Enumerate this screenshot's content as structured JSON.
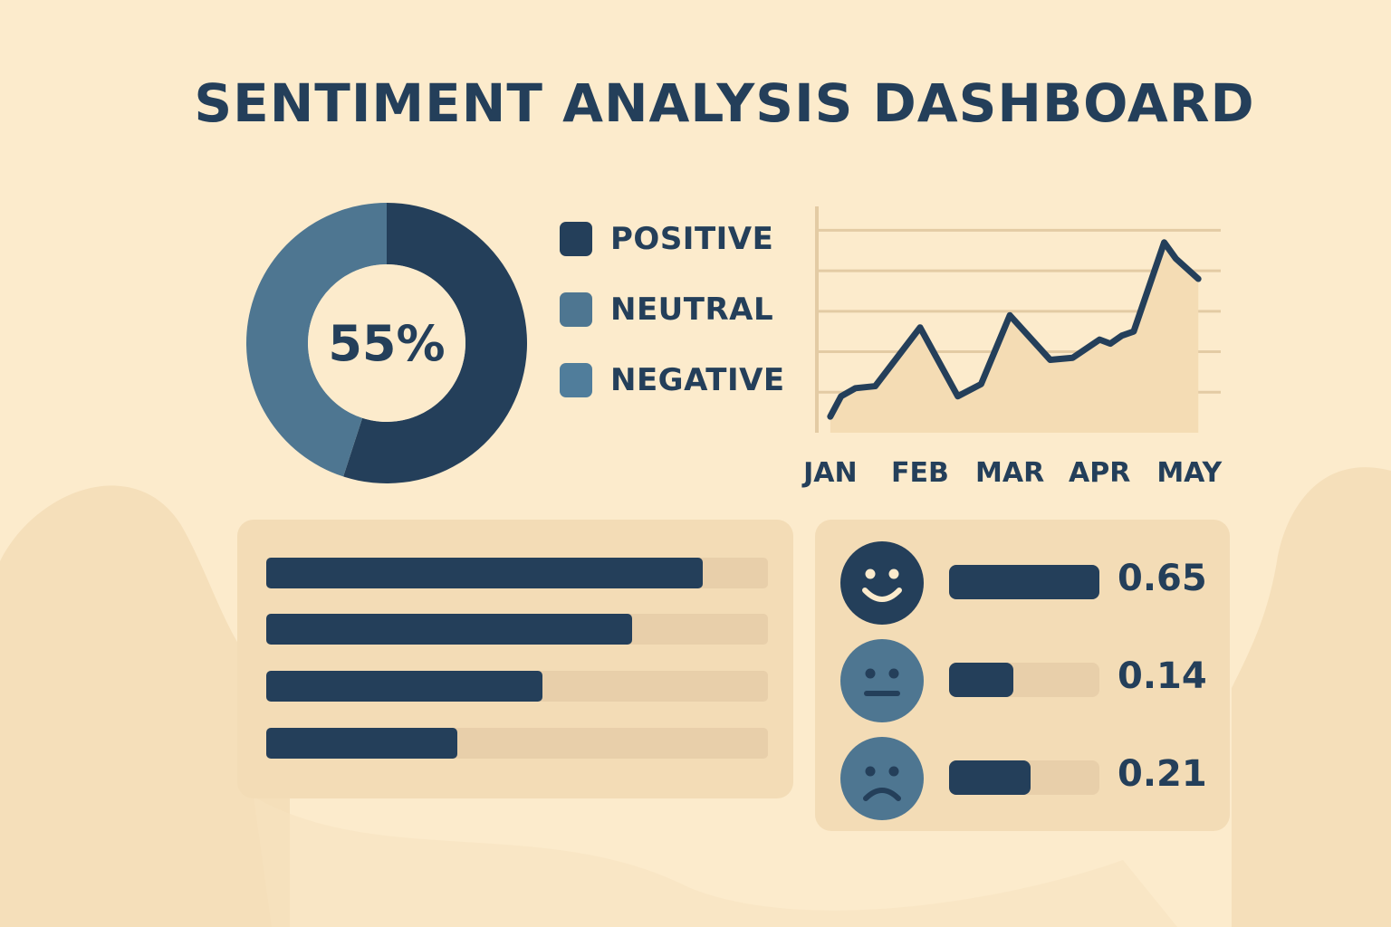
{
  "title": "SENTIMENT ANALYSIS DASHBOARD",
  "colors": {
    "background": "#fcebcc",
    "panel": "#f3dcb6",
    "track": "#e8cfaa",
    "dark": "#243f5a",
    "medium": "#4e7691",
    "light": "#507d9b"
  },
  "chart_data": [
    {
      "type": "pie",
      "center_label": "55%",
      "labels": [
        "POSITIVE",
        "NEUTRAL",
        "NEGATIVE"
      ],
      "values": [
        55,
        45,
        0
      ],
      "colors": [
        "#243f5a",
        "#4e7691",
        "#507d9b"
      ],
      "legend": "right"
    },
    {
      "type": "line",
      "categories": [
        "JAN",
        "FEB",
        "MAR",
        "APR",
        "MAY"
      ],
      "x": [
        0,
        0.12,
        0.28,
        0.5,
        1,
        1.42,
        1.68,
        2,
        2.45,
        2.7,
        3,
        3.12,
        3.25,
        3.38,
        3.72,
        3.85,
        4.1
      ],
      "values": [
        0.4,
        0.9,
        1.1,
        1.15,
        2.6,
        0.9,
        1.2,
        2.9,
        1.8,
        1.85,
        2.3,
        2.2,
        2.4,
        2.5,
        4.7,
        4.3,
        3.8
      ],
      "ylim": [
        0,
        5.5
      ],
      "area_fill": true,
      "grid": true
    },
    {
      "type": "bar",
      "orientation": "horizontal",
      "values": [
        0.87,
        0.73,
        0.55,
        0.38
      ],
      "xlim": [
        0,
        1
      ]
    }
  ],
  "scores": [
    {
      "face": "smile-face-icon",
      "value_label": "0.65",
      "bar": 1.0,
      "face_color": "#243f5a"
    },
    {
      "face": "neutral-face-icon",
      "value_label": "0.14",
      "bar": 0.43,
      "face_color": "#4e7691"
    },
    {
      "face": "frown-face-icon",
      "value_label": "0.21",
      "bar": 0.54,
      "face_color": "#4e7691"
    }
  ]
}
